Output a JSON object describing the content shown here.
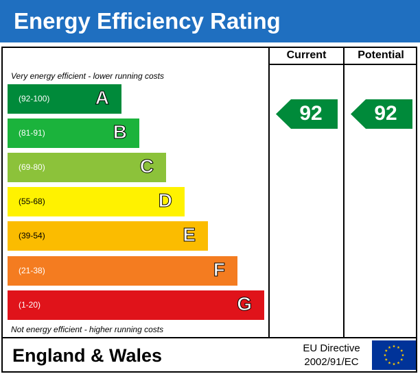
{
  "header": {
    "title": "Energy Efficiency Rating"
  },
  "columns": {
    "current": "Current",
    "potential": "Potential"
  },
  "notes": {
    "top": "Very energy efficient - lower running costs",
    "bottom": "Not energy efficient - higher running costs"
  },
  "chart_data": {
    "type": "bar",
    "categories": [
      "A",
      "B",
      "C",
      "D",
      "E",
      "F",
      "G"
    ],
    "ranges": [
      "(92-100)",
      "(81-91)",
      "(69-80)",
      "(55-68)",
      "(39-54)",
      "(21-38)",
      "(1-20)"
    ],
    "range_values": [
      [
        92,
        100
      ],
      [
        81,
        91
      ],
      [
        69,
        80
      ],
      [
        55,
        68
      ],
      [
        39,
        54
      ],
      [
        21,
        38
      ],
      [
        1,
        20
      ]
    ],
    "colors": [
      "#008a3a",
      "#1bb33c",
      "#8cc23a",
      "#fff200",
      "#fbbc00",
      "#f47c20",
      "#e0131a"
    ],
    "range_colors": [
      "#ffffff",
      "#ffffff",
      "#ffffff",
      "#000000",
      "#000000",
      "#ffffff",
      "#ffffff"
    ],
    "current": 92,
    "potential": 92,
    "rating_color": "#008a3a"
  },
  "footer": {
    "region": "England & Wales",
    "directive_line1": "EU Directive",
    "directive_line2": "2002/91/EC",
    "flag_color": "#003399",
    "star_color": "#ffcc00"
  }
}
